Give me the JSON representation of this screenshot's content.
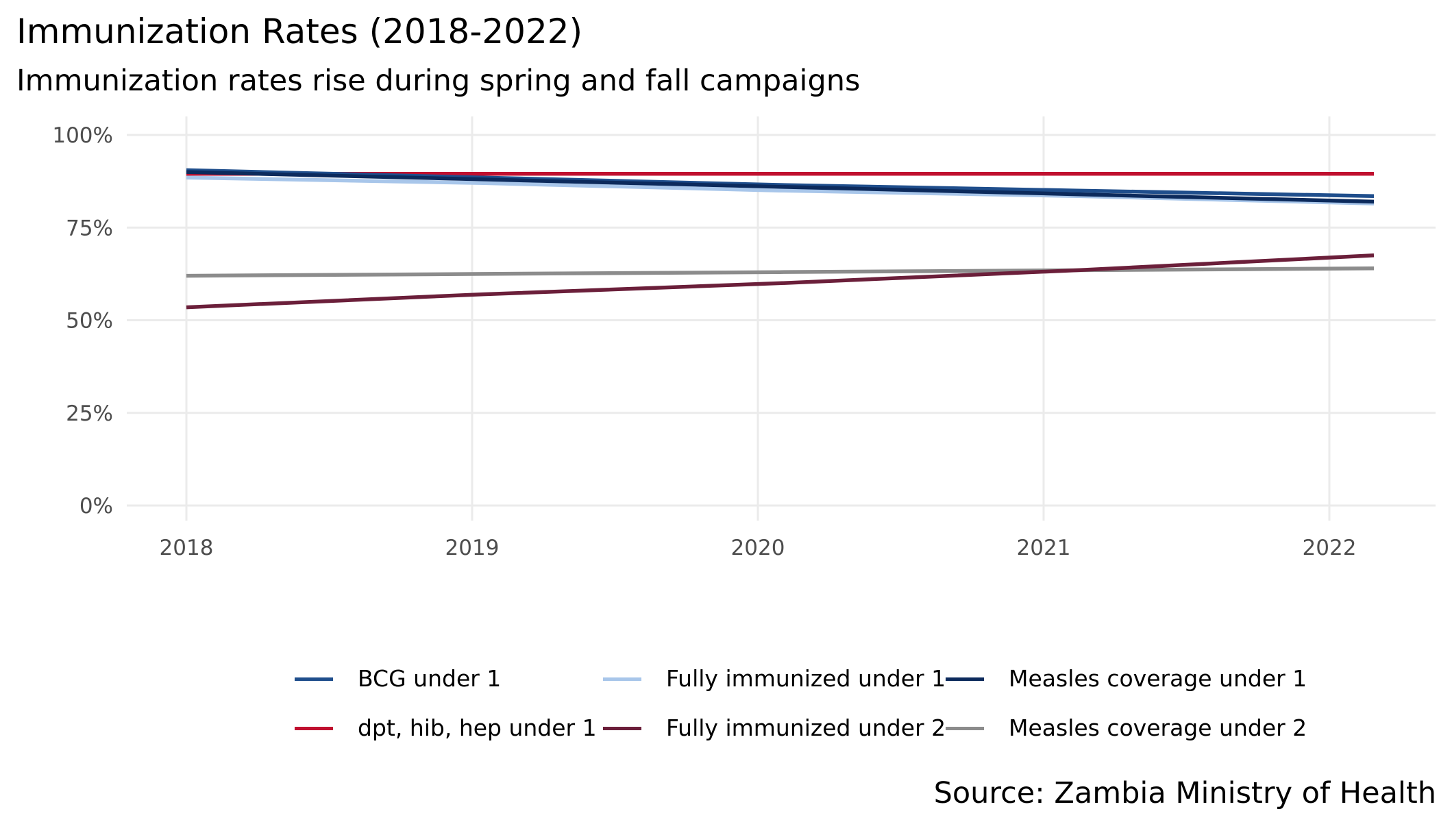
{
  "title": "Immunization Rates (2018-2022)",
  "subtitle": "Immunization rates rise during spring and fall campaigns",
  "caption": "Source: Zambia Ministry of Health",
  "chart_data": {
    "type": "line",
    "title": "Immunization Rates (2018-2022)",
    "subtitle": "Immunization rates rise during spring and fall campaigns",
    "caption": "Source: Zambia Ministry of Health",
    "xlabel": "",
    "ylabel": "",
    "x": [
      "2018",
      "2019",
      "2020",
      "2021",
      "2022"
    ],
    "x_ticks": [
      "2018",
      "2019",
      "2020",
      "2021",
      "2022"
    ],
    "y_ticks": [
      "0%",
      "25%",
      "50%",
      "75%",
      "100%"
    ],
    "ylim": [
      0,
      100
    ],
    "y_unit": "%",
    "grid": true,
    "legend_position": "bottom",
    "series": [
      {
        "name": "BCG under 1",
        "color": "#1f4e8c",
        "values": [
          90.5,
          88.5,
          86.5,
          85.0,
          83.5
        ]
      },
      {
        "name": "dpt, hib, hep under 1",
        "color": "#c0102f",
        "values": [
          89.5,
          89.5,
          89.5,
          89.5,
          89.5
        ]
      },
      {
        "name": "Fully immunized under 1",
        "color": "#a8c6ea",
        "values": [
          88.5,
          87.0,
          85.0,
          83.5,
          81.5
        ]
      },
      {
        "name": "Fully immunized under 2",
        "color": "#6b1f3a",
        "values": [
          53.5,
          57.0,
          60.0,
          63.5,
          67.5
        ]
      },
      {
        "name": "Measles coverage under 1",
        "color": "#0c2a5c",
        "values": [
          90.0,
          88.0,
          86.0,
          84.0,
          82.0
        ]
      },
      {
        "name": "Measles coverage under 2",
        "color": "#8c8c8c",
        "values": [
          62.0,
          62.5,
          63.0,
          63.5,
          64.0
        ]
      }
    ],
    "legend_order": [
      "BCG under 1",
      "Fully immunized under 1",
      "Measles coverage under 1",
      "dpt, hib, hep under 1",
      "Fully immunized under 2",
      "Measles coverage under 2"
    ]
  }
}
